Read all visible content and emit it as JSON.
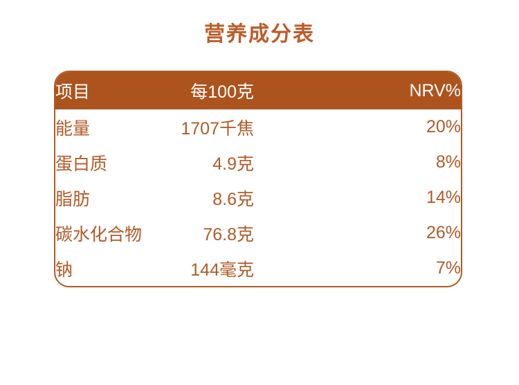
{
  "page": {
    "background": "#FFFFFF"
  },
  "title": "营养成分表",
  "colors": {
    "title": "#BE5B26",
    "header_bg": "#AD541E",
    "header_text": "#FFFFFF",
    "body_text": "#B25A27",
    "border": "#B15A22",
    "background": "#FFFFFF"
  },
  "chart_data": {
    "type": "table",
    "title": "营养成分表",
    "columns": [
      "项目",
      "每100克",
      "NRV%"
    ],
    "rows": [
      [
        "能量",
        "1707千焦",
        "20%"
      ],
      [
        "蛋白质",
        "4.9克",
        "8%"
      ],
      [
        "脂肪",
        "8.6克",
        "14%"
      ],
      [
        "碳水化合物",
        "76.8克",
        "26%"
      ],
      [
        "钠",
        "144毫克",
        "7%"
      ]
    ]
  }
}
